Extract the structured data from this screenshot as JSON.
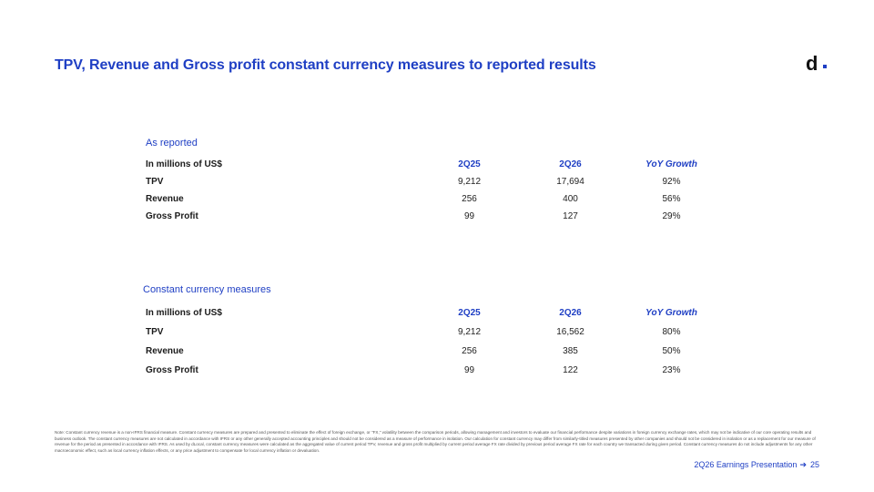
{
  "title": "TPV, Revenue and Gross profit constant currency measures to reported results",
  "logo": {
    "letter": "d"
  },
  "colors": {
    "accent": "#1f3fc4",
    "text": "#1a1a1a"
  },
  "sections": [
    {
      "label": "As reported",
      "header": {
        "metric": "In millions of US$",
        "col1": "2Q25",
        "col2": "2Q26",
        "col3": "YoY Growth"
      },
      "rows": [
        {
          "metric": "TPV",
          "col1": "9,212",
          "col2": "17,694",
          "col3": "92%"
        },
        {
          "metric": "Revenue",
          "col1": "256",
          "col2": "400",
          "col3": "56%"
        },
        {
          "metric": "Gross Profit",
          "col1": "99",
          "col2": "127",
          "col3": "29%"
        }
      ]
    },
    {
      "label": "Constant currency measures",
      "header": {
        "metric": "In millions of US$",
        "col1": "2Q25",
        "col2": "2Q26",
        "col3": "YoY Growth"
      },
      "rows": [
        {
          "metric": "TPV",
          "col1": "9,212",
          "col2": "16,562",
          "col3": "80%"
        },
        {
          "metric": "Revenue",
          "col1": "256",
          "col2": "385",
          "col3": "50%"
        },
        {
          "metric": "Gross Profit",
          "col1": "99",
          "col2": "122",
          "col3": "23%"
        }
      ]
    }
  ],
  "note": "Note: Constant currency revenue is a non-IFRS financial measure. Constant currency measures are prepared and presented to eliminate the effect of foreign exchange, or \"FX,\" volatility between the comparison periods, allowing management and investors to evaluate our financial performance despite variations in foreign currency exchange rates, which may not be indicative of our core operating results and business outlook. The constant currency measures are not calculated in accordance with IFRS or any other generally accepted accounting principles and should not be considered as a measure of performance in isolation. Our calculation for constant currency may differ from similarly-titled measures presented by other companies and should not be considered in isolation or as a replacement for our measure of revenue for the period as presented in accordance with IFRS. As used by dLocal, constant currency measures were calculated as the aggregated value of current period TPV, revenue and gross profit multiplied by current period average FX rate divided by previous period average FX rate for each country we transacted during given period. Constant currency measures do not include adjustments for any other macroeconomic effect, such as local currency inflation effects, or any price adjustment to compensate for local currency inflation or devaluation.",
  "footer": {
    "label": "2Q26 Earnings Presentation",
    "arrow": "➔",
    "page": "25"
  }
}
